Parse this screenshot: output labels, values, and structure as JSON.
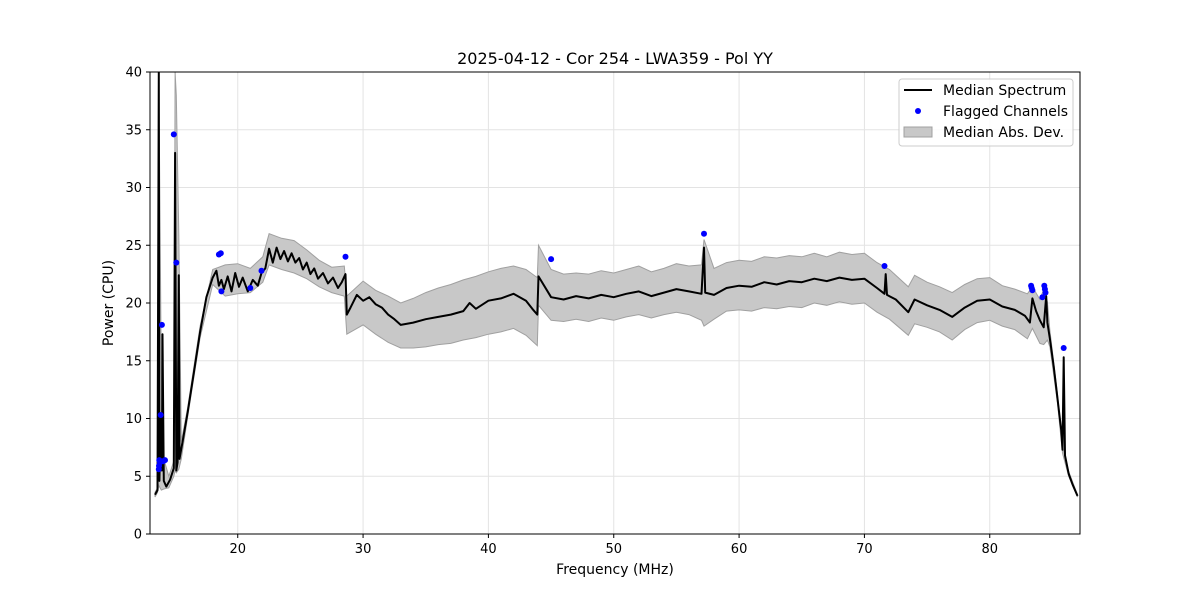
{
  "chart_data": {
    "type": "line",
    "title": "2025-04-12 - Cor 254 - LWA359 - Pol YY",
    "xlabel": "Frequency (MHz)",
    "ylabel": "Power (CPU)",
    "xlim": [
      13.0,
      87.2
    ],
    "ylim": [
      0,
      40
    ],
    "x_ticks": [
      20,
      30,
      40,
      50,
      60,
      70,
      80
    ],
    "y_ticks": [
      0,
      5,
      10,
      15,
      20,
      25,
      30,
      35,
      40
    ],
    "grid": true,
    "legend_position": "top-right",
    "colors": {
      "median": "#000000",
      "flagged": "#0000ff",
      "mad_fill": "#c8c8c8",
      "mad_edge": "#a0a0a0"
    },
    "series": [
      {
        "name": "Median Spectrum",
        "kind": "line",
        "points": [
          [
            13.4,
            3.4
          ],
          [
            13.6,
            3.8
          ],
          [
            13.7,
            40.0
          ],
          [
            13.75,
            4.6
          ],
          [
            13.85,
            10.3
          ],
          [
            13.95,
            5.5
          ],
          [
            14.0,
            17.3
          ],
          [
            14.1,
            4.6
          ],
          [
            14.3,
            4.1
          ],
          [
            14.6,
            4.7
          ],
          [
            14.9,
            5.7
          ],
          [
            15.0,
            33.0
          ],
          [
            15.1,
            5.5
          ],
          [
            15.2,
            6.2
          ],
          [
            15.3,
            22.4
          ],
          [
            15.35,
            6.5
          ],
          [
            15.6,
            8.0
          ],
          [
            16.0,
            10.5
          ],
          [
            16.5,
            14.0
          ],
          [
            17.0,
            17.5
          ],
          [
            17.5,
            20.5
          ],
          [
            18.0,
            22.2
          ],
          [
            18.3,
            22.8
          ],
          [
            18.5,
            21.5
          ],
          [
            18.7,
            22.0
          ],
          [
            18.9,
            21.2
          ],
          [
            19.2,
            22.3
          ],
          [
            19.5,
            21.0
          ],
          [
            19.8,
            22.6
          ],
          [
            20.1,
            21.4
          ],
          [
            20.4,
            22.2
          ],
          [
            20.8,
            21.0
          ],
          [
            21.2,
            22.0
          ],
          [
            21.6,
            21.5
          ],
          [
            21.9,
            22.6
          ],
          [
            22.2,
            23.0
          ],
          [
            22.5,
            24.7
          ],
          [
            22.8,
            23.5
          ],
          [
            23.1,
            24.8
          ],
          [
            23.4,
            23.8
          ],
          [
            23.7,
            24.5
          ],
          [
            24.0,
            23.6
          ],
          [
            24.3,
            24.3
          ],
          [
            24.6,
            23.5
          ],
          [
            24.9,
            23.9
          ],
          [
            25.2,
            22.9
          ],
          [
            25.5,
            23.5
          ],
          [
            25.8,
            22.5
          ],
          [
            26.1,
            23.0
          ],
          [
            26.4,
            22.1
          ],
          [
            26.8,
            22.6
          ],
          [
            27.2,
            21.7
          ],
          [
            27.6,
            22.2
          ],
          [
            28.0,
            21.3
          ],
          [
            28.3,
            21.8
          ],
          [
            28.6,
            22.5
          ],
          [
            28.7,
            19.0
          ],
          [
            29.0,
            19.6
          ],
          [
            29.5,
            20.7
          ],
          [
            30.0,
            20.2
          ],
          [
            30.5,
            20.5
          ],
          [
            31.0,
            19.9
          ],
          [
            31.5,
            19.6
          ],
          [
            32.0,
            19.0
          ],
          [
            32.5,
            18.6
          ],
          [
            33.0,
            18.1
          ],
          [
            34.0,
            18.3
          ],
          [
            35.0,
            18.6
          ],
          [
            36.0,
            18.8
          ],
          [
            37.0,
            19.0
          ],
          [
            38.0,
            19.3
          ],
          [
            38.5,
            20.0
          ],
          [
            39.0,
            19.5
          ],
          [
            40.0,
            20.2
          ],
          [
            41.0,
            20.4
          ],
          [
            42.0,
            20.8
          ],
          [
            43.0,
            20.2
          ],
          [
            43.5,
            19.5
          ],
          [
            43.9,
            19.0
          ],
          [
            44.0,
            22.3
          ],
          [
            45.0,
            20.5
          ],
          [
            46.0,
            20.3
          ],
          [
            47.0,
            20.6
          ],
          [
            48.0,
            20.4
          ],
          [
            49.0,
            20.7
          ],
          [
            50.0,
            20.5
          ],
          [
            51.0,
            20.8
          ],
          [
            52.0,
            21.0
          ],
          [
            53.0,
            20.6
          ],
          [
            54.0,
            20.9
          ],
          [
            55.0,
            21.2
          ],
          [
            56.0,
            21.0
          ],
          [
            57.0,
            20.8
          ],
          [
            57.2,
            24.8
          ],
          [
            57.3,
            20.9
          ],
          [
            58.0,
            20.7
          ],
          [
            59.0,
            21.3
          ],
          [
            60.0,
            21.5
          ],
          [
            61.0,
            21.4
          ],
          [
            62.0,
            21.8
          ],
          [
            63.0,
            21.6
          ],
          [
            64.0,
            21.9
          ],
          [
            65.0,
            21.8
          ],
          [
            66.0,
            22.1
          ],
          [
            67.0,
            21.9
          ],
          [
            68.0,
            22.2
          ],
          [
            69.0,
            22.0
          ],
          [
            70.0,
            22.1
          ],
          [
            71.0,
            21.3
          ],
          [
            71.6,
            20.8
          ],
          [
            71.7,
            22.5
          ],
          [
            71.8,
            20.7
          ],
          [
            72.5,
            20.3
          ],
          [
            73.5,
            19.2
          ],
          [
            74.0,
            20.3
          ],
          [
            75.0,
            19.8
          ],
          [
            76.0,
            19.4
          ],
          [
            77.0,
            18.8
          ],
          [
            78.0,
            19.6
          ],
          [
            79.0,
            20.2
          ],
          [
            80.0,
            20.3
          ],
          [
            81.0,
            19.7
          ],
          [
            82.0,
            19.4
          ],
          [
            82.8,
            18.9
          ],
          [
            83.2,
            18.3
          ],
          [
            83.4,
            20.4
          ],
          [
            83.7,
            19.3
          ],
          [
            84.0,
            18.5
          ],
          [
            84.3,
            17.9
          ],
          [
            84.5,
            20.6
          ],
          [
            84.6,
            18.3
          ],
          [
            84.8,
            16.9
          ],
          [
            85.1,
            14.5
          ],
          [
            85.4,
            11.8
          ],
          [
            85.7,
            9.0
          ],
          [
            85.8,
            7.3
          ],
          [
            85.9,
            15.3
          ],
          [
            86.0,
            6.8
          ],
          [
            86.3,
            5.2
          ],
          [
            86.6,
            4.3
          ],
          [
            87.0,
            3.3
          ]
        ]
      },
      {
        "name": "Flagged Channels",
        "kind": "scatter",
        "points": [
          [
            13.7,
            5.6
          ],
          [
            13.72,
            5.9
          ],
          [
            13.74,
            6.4
          ],
          [
            13.8,
            6.2
          ],
          [
            13.85,
            10.3
          ],
          [
            13.95,
            18.1
          ],
          [
            14.05,
            6.3
          ],
          [
            14.2,
            6.4
          ],
          [
            14.9,
            34.6
          ],
          [
            15.1,
            23.5
          ],
          [
            18.5,
            24.2
          ],
          [
            18.65,
            24.3
          ],
          [
            18.7,
            21.0
          ],
          [
            21.0,
            21.3
          ],
          [
            21.9,
            22.8
          ],
          [
            28.6,
            24.0
          ],
          [
            45.0,
            23.8
          ],
          [
            57.2,
            26.0
          ],
          [
            71.6,
            23.2
          ],
          [
            83.3,
            21.5
          ],
          [
            83.35,
            21.3
          ],
          [
            83.4,
            21.1
          ],
          [
            84.2,
            20.5
          ],
          [
            84.35,
            21.5
          ],
          [
            84.4,
            21.2
          ],
          [
            84.45,
            20.9
          ],
          [
            85.9,
            16.1
          ]
        ]
      },
      {
        "name": "Median Abs. Dev.",
        "kind": "band",
        "points": [
          [
            13.4,
            3.2,
            3.6
          ],
          [
            13.6,
            3.6,
            4.0
          ],
          [
            13.7,
            4.2,
            41.0
          ],
          [
            13.9,
            3.8,
            14.0
          ],
          [
            14.1,
            3.9,
            6.5
          ],
          [
            14.5,
            4.0,
            5.0
          ],
          [
            14.9,
            5.0,
            6.3
          ],
          [
            15.0,
            5.5,
            40.0
          ],
          [
            15.1,
            5.3,
            38.0
          ],
          [
            15.3,
            5.6,
            26.0
          ],
          [
            15.5,
            6.5,
            8.0
          ],
          [
            16.0,
            10.1,
            10.9
          ],
          [
            17.0,
            17.0,
            18.0
          ],
          [
            18.0,
            21.6,
            22.9
          ],
          [
            19.0,
            20.6,
            23.3
          ],
          [
            20.0,
            20.8,
            23.4
          ],
          [
            21.0,
            20.9,
            23.0
          ],
          [
            22.0,
            21.8,
            24.0
          ],
          [
            22.5,
            23.3,
            26.0
          ],
          [
            23.5,
            22.9,
            25.6
          ],
          [
            24.5,
            22.6,
            25.4
          ],
          [
            25.5,
            22.1,
            24.6
          ],
          [
            26.5,
            21.4,
            23.7
          ],
          [
            27.5,
            20.9,
            23.1
          ],
          [
            28.5,
            20.6,
            23.2
          ],
          [
            28.7,
            17.3,
            20.6
          ],
          [
            30.0,
            18.1,
            21.9
          ],
          [
            31.0,
            17.3,
            21.1
          ],
          [
            32.0,
            16.6,
            20.6
          ],
          [
            33.0,
            16.1,
            20.0
          ],
          [
            34.0,
            16.1,
            20.4
          ],
          [
            35.0,
            16.2,
            20.9
          ],
          [
            36.0,
            16.4,
            21.3
          ],
          [
            37.0,
            16.5,
            21.6
          ],
          [
            38.0,
            16.8,
            22.0
          ],
          [
            39.0,
            17.0,
            22.3
          ],
          [
            40.0,
            17.3,
            22.7
          ],
          [
            41.0,
            17.5,
            23.0
          ],
          [
            42.0,
            17.8,
            23.2
          ],
          [
            43.0,
            17.2,
            22.9
          ],
          [
            43.9,
            16.3,
            22.2
          ],
          [
            44.0,
            19.8,
            25.0
          ],
          [
            45.0,
            18.5,
            22.9
          ],
          [
            46.0,
            18.4,
            22.5
          ],
          [
            47.0,
            18.6,
            22.6
          ],
          [
            48.0,
            18.4,
            22.5
          ],
          [
            49.0,
            18.7,
            22.8
          ],
          [
            50.0,
            18.5,
            22.6
          ],
          [
            51.0,
            18.8,
            22.9
          ],
          [
            52.0,
            19.0,
            23.2
          ],
          [
            53.0,
            18.7,
            22.7
          ],
          [
            54.0,
            19.0,
            23.0
          ],
          [
            55.0,
            19.2,
            23.4
          ],
          [
            56.0,
            19.0,
            23.2
          ],
          [
            57.0,
            18.5,
            23.3
          ],
          [
            57.2,
            18.0,
            25.5
          ],
          [
            58.0,
            18.6,
            23.0
          ],
          [
            59.0,
            19.3,
            23.5
          ],
          [
            60.0,
            19.4,
            23.7
          ],
          [
            61.0,
            19.3,
            23.6
          ],
          [
            62.0,
            19.6,
            24.0
          ],
          [
            63.0,
            19.5,
            23.9
          ],
          [
            64.0,
            19.7,
            24.1
          ],
          [
            65.0,
            19.6,
            24.0
          ],
          [
            66.0,
            20.0,
            24.3
          ],
          [
            67.0,
            19.8,
            24.0
          ],
          [
            68.0,
            20.1,
            24.4
          ],
          [
            69.0,
            19.9,
            24.2
          ],
          [
            70.0,
            20.0,
            24.3
          ],
          [
            71.0,
            19.2,
            23.5
          ],
          [
            72.0,
            18.6,
            22.9
          ],
          [
            73.5,
            17.2,
            21.4
          ],
          [
            74.0,
            18.2,
            22.4
          ],
          [
            75.0,
            17.9,
            21.8
          ],
          [
            76.0,
            17.5,
            21.4
          ],
          [
            77.0,
            16.8,
            20.9
          ],
          [
            78.0,
            17.7,
            21.6
          ],
          [
            79.0,
            18.3,
            22.1
          ],
          [
            80.0,
            18.5,
            22.2
          ],
          [
            81.0,
            18.0,
            21.5
          ],
          [
            82.0,
            17.7,
            21.2
          ],
          [
            83.0,
            16.9,
            20.8
          ],
          [
            83.4,
            17.8,
            21.4
          ],
          [
            84.0,
            16.5,
            20.3
          ],
          [
            84.3,
            16.4,
            21.2
          ],
          [
            84.6,
            16.8,
            20.1
          ],
          [
            84.8,
            16.2,
            17.6
          ],
          [
            85.4,
            11.4,
            12.2
          ],
          [
            85.8,
            7.0,
            7.6
          ],
          [
            86.3,
            5.0,
            5.4
          ],
          [
            87.0,
            3.2,
            3.4
          ]
        ]
      }
    ]
  }
}
